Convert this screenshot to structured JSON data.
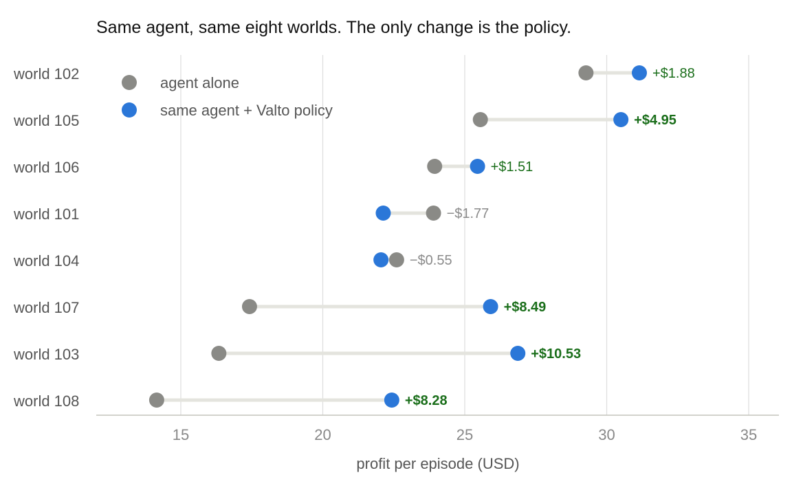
{
  "chart_data": {
    "type": "dumbbell",
    "title": "Same agent, same eight worlds. The only change is the policy.",
    "xlabel": "profit per episode (USD)",
    "ylabel": "",
    "xlim": [
      12,
      36
    ],
    "xticks": [
      15,
      20,
      25,
      30,
      35
    ],
    "grid": "vertical",
    "legend_placement": "top-left",
    "colors": {
      "baseline": "#8a8a86",
      "policy": "#2b77d8",
      "connector": "#e4e4de",
      "gain": "#1a6e1a",
      "loss": "#8a8a8a",
      "grid": "#dddddd",
      "axis": "#c4c4bc"
    },
    "series": [
      {
        "key": "baseline",
        "name": "agent alone"
      },
      {
        "key": "policy",
        "name": "same agent + Valto policy"
      }
    ],
    "categories": [
      "world 102",
      "world 105",
      "world 106",
      "world 101",
      "world 104",
      "world 107",
      "world 103",
      "world 108"
    ],
    "rows": [
      {
        "category": "world 102",
        "baseline": 29.27,
        "policy": 31.15,
        "delta": "+$1.88",
        "bold": false
      },
      {
        "category": "world 105",
        "baseline": 25.55,
        "policy": 30.5,
        "delta": "+$4.95",
        "bold": true
      },
      {
        "category": "world 106",
        "baseline": 23.94,
        "policy": 25.45,
        "delta": "+$1.51",
        "bold": false
      },
      {
        "category": "world 101",
        "baseline": 23.9,
        "policy": 22.13,
        "delta": "−$1.77",
        "bold": false
      },
      {
        "category": "world 104",
        "baseline": 22.6,
        "policy": 22.05,
        "delta": "−$0.55",
        "bold": false
      },
      {
        "category": "world 107",
        "baseline": 17.42,
        "policy": 25.91,
        "delta": "+$8.49",
        "bold": true
      },
      {
        "category": "world 103",
        "baseline": 16.34,
        "policy": 26.87,
        "delta": "+$10.53",
        "bold": true
      },
      {
        "category": "world 108",
        "baseline": 14.15,
        "policy": 22.43,
        "delta": "+$8.28",
        "bold": true
      }
    ]
  }
}
